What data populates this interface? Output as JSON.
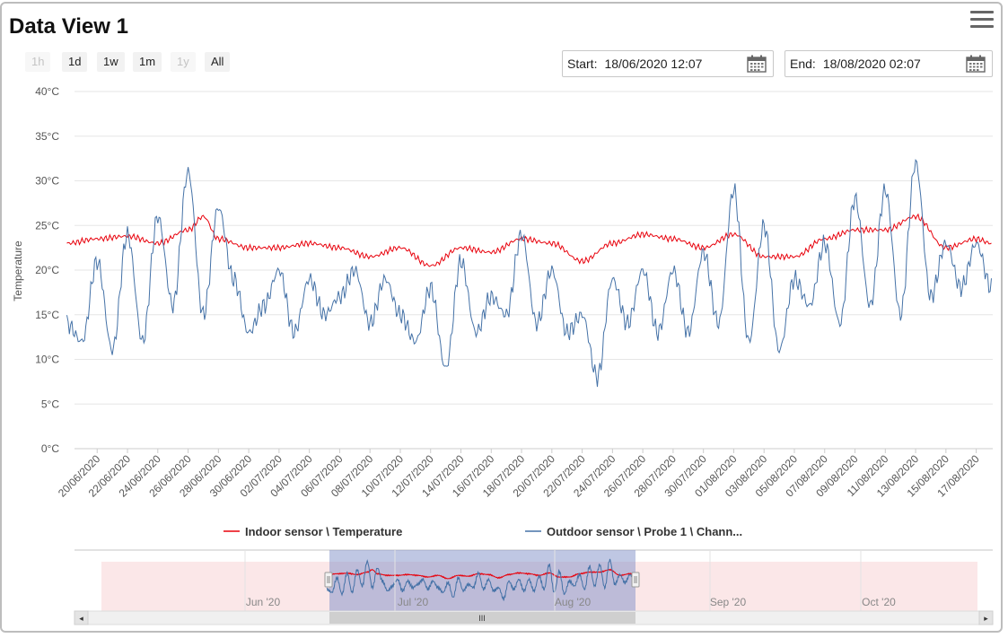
{
  "title": "Data View 1",
  "zoom_buttons": [
    {
      "label": "1h",
      "enabled": false
    },
    {
      "label": "1d",
      "enabled": true
    },
    {
      "label": "1w",
      "enabled": true
    },
    {
      "label": "1m",
      "enabled": true
    },
    {
      "label": "1y",
      "enabled": false
    },
    {
      "label": "All",
      "enabled": true
    }
  ],
  "start": {
    "label": "Start:",
    "value": "18/06/2020 12:07"
  },
  "end": {
    "label": "End:",
    "value": "18/08/2020 02:07"
  },
  "icons": {
    "menu": "hamburger-menu-icon",
    "calendar": "calendar-icon"
  },
  "chart_data": {
    "type": "line",
    "ylabel": "Temperature",
    "ylim": [
      0,
      40
    ],
    "y_ticks": [
      0,
      5,
      10,
      15,
      20,
      25,
      30,
      35,
      40
    ],
    "y_tick_labels": [
      "0°C",
      "5°C",
      "10°C",
      "15°C",
      "20°C",
      "25°C",
      "30°C",
      "35°C",
      "40°C"
    ],
    "x_range": [
      "18/06/2020 12:07",
      "18/08/2020 02:07"
    ],
    "x_tick_labels": [
      "20/06/2020",
      "22/06/2020",
      "24/06/2020",
      "26/06/2020",
      "28/06/2020",
      "30/06/2020",
      "02/07/2020",
      "04/07/2020",
      "06/07/2020",
      "08/07/2020",
      "10/07/2020",
      "12/07/2020",
      "14/07/2020",
      "16/07/2020",
      "18/07/2020",
      "20/07/2020",
      "22/07/2020",
      "24/07/2020",
      "26/07/2020",
      "28/07/2020",
      "30/07/2020",
      "01/08/2020",
      "03/08/2020",
      "05/08/2020",
      "07/08/2020",
      "09/08/2020",
      "11/08/2020",
      "13/08/2020",
      "15/08/2020",
      "17/08/2020"
    ],
    "grid": true,
    "legend_position": "bottom",
    "series": [
      {
        "name": "Indoor sensor \\ Temperature",
        "color": "#e8000b",
        "x": [
          "18/06/2020",
          "20/06/2020",
          "22/06/2020",
          "24/06/2020",
          "26/06/2020",
          "27/06/2020",
          "28/06/2020",
          "30/06/2020",
          "02/07/2020",
          "04/07/2020",
          "06/07/2020",
          "08/07/2020",
          "10/07/2020",
          "12/07/2020",
          "14/07/2020",
          "16/07/2020",
          "18/07/2020",
          "20/07/2020",
          "22/07/2020",
          "24/07/2020",
          "26/07/2020",
          "28/07/2020",
          "30/07/2020",
          "01/08/2020",
          "03/08/2020",
          "05/08/2020",
          "07/08/2020",
          "09/08/2020",
          "11/08/2020",
          "13/08/2020",
          "15/08/2020",
          "17/08/2020",
          "18/08/2020"
        ],
        "values": [
          23.0,
          23.5,
          23.8,
          23.0,
          24.5,
          26.0,
          23.5,
          22.5,
          22.5,
          23.0,
          22.5,
          21.5,
          22.5,
          20.5,
          22.5,
          22.0,
          23.5,
          23.0,
          21.0,
          23.0,
          24.0,
          23.5,
          22.5,
          24.0,
          21.5,
          21.5,
          23.5,
          24.5,
          24.5,
          26.0,
          22.5,
          23.5,
          23.0
        ]
      },
      {
        "name": "Outdoor sensor \\ Probe 1 \\ Chann...",
        "color": "#4572a7",
        "x": [
          "18/06/2020",
          "19/06/2020",
          "20/06/2020",
          "21/06/2020",
          "22/06/2020",
          "23/06/2020",
          "24/06/2020",
          "25/06/2020",
          "26/06/2020",
          "27/06/2020",
          "28/06/2020",
          "29/06/2020",
          "30/06/2020",
          "01/07/2020",
          "02/07/2020",
          "03/07/2020",
          "04/07/2020",
          "05/07/2020",
          "06/07/2020",
          "07/07/2020",
          "08/07/2020",
          "09/07/2020",
          "10/07/2020",
          "11/07/2020",
          "12/07/2020",
          "13/07/2020",
          "14/07/2020",
          "15/07/2020",
          "16/07/2020",
          "17/07/2020",
          "18/07/2020",
          "19/07/2020",
          "20/07/2020",
          "21/07/2020",
          "22/07/2020",
          "23/07/2020",
          "24/07/2020",
          "25/07/2020",
          "26/07/2020",
          "27/07/2020",
          "28/07/2020",
          "29/07/2020",
          "30/07/2020",
          "31/07/2020",
          "01/08/2020",
          "02/08/2020",
          "03/08/2020",
          "04/08/2020",
          "05/08/2020",
          "06/08/2020",
          "07/08/2020",
          "08/08/2020",
          "09/08/2020",
          "10/08/2020",
          "11/08/2020",
          "12/08/2020",
          "13/08/2020",
          "14/08/2020",
          "15/08/2020",
          "16/08/2020",
          "17/08/2020",
          "18/08/2020"
        ],
        "values": [
          14,
          12,
          21,
          11,
          24,
          12,
          26,
          16,
          31,
          15,
          27,
          19,
          13,
          16,
          20,
          13,
          19,
          15,
          17,
          20,
          14,
          19,
          15,
          12,
          18,
          9,
          21,
          13,
          17,
          15,
          24,
          14,
          20,
          13,
          15,
          8,
          19,
          14,
          20,
          13,
          20,
          13,
          22,
          14,
          29,
          12,
          25,
          11,
          19,
          16,
          23,
          14,
          28,
          16,
          29,
          15,
          32,
          17,
          23,
          18,
          23,
          18
        ]
      }
    ]
  },
  "navigator": {
    "month_labels": [
      "Jun '20",
      "Jul '20",
      "Aug '20",
      "Sep '20",
      "Oct '20"
    ],
    "selected_range": [
      "18/06/2020 12:07",
      "18/08/2020 02:07"
    ],
    "scroll_thumb_label": "III",
    "scroll_left": "◂",
    "scroll_right": "▸"
  }
}
